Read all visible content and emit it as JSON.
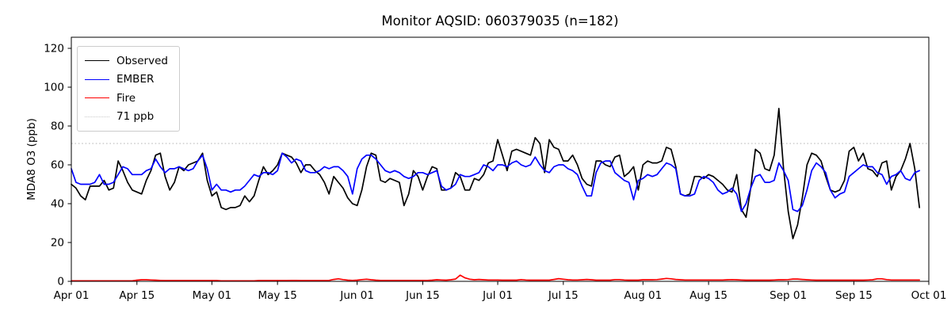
{
  "page": {
    "background": "#ffffff"
  },
  "chart_data": {
    "type": "line",
    "title": "Monitor AQSID: 060379035 (n=182)",
    "xlabel": "",
    "ylabel": "MDA8 O3 (ppb)",
    "n_points": 182,
    "x_start_date": "Apr 01",
    "x_end_date": "Sep 29",
    "x_domain_days": 183,
    "ylim": [
      0,
      126
    ],
    "yticks": [
      0,
      20,
      40,
      60,
      80,
      100,
      120
    ],
    "grid": false,
    "legend_position": "upper-left",
    "xticks": [
      {
        "day": 0,
        "label": "Apr 01"
      },
      {
        "day": 14,
        "label": "Apr 15"
      },
      {
        "day": 30,
        "label": "May 01"
      },
      {
        "day": 44,
        "label": "May 15"
      },
      {
        "day": 61,
        "label": "Jun 01"
      },
      {
        "day": 75,
        "label": "Jun 15"
      },
      {
        "day": 91,
        "label": "Jul 01"
      },
      {
        "day": 105,
        "label": "Jul 15"
      },
      {
        "day": 122,
        "label": "Aug 01"
      },
      {
        "day": 136,
        "label": "Aug 15"
      },
      {
        "day": 153,
        "label": "Sep 01"
      },
      {
        "day": 167,
        "label": "Sep 15"
      },
      {
        "day": 183,
        "label": "Oct 01"
      }
    ],
    "threshold": {
      "value": 71,
      "label": "71 ppb",
      "color": "#c9c9c9",
      "style": "dotted"
    },
    "series": [
      {
        "name": "Observed",
        "color": "#000000",
        "style": "solid",
        "values": [
          50,
          48,
          44,
          42,
          49,
          49,
          49,
          52,
          47,
          48,
          62,
          57,
          51,
          47,
          46,
          45,
          52,
          57,
          65,
          66,
          54,
          47,
          51,
          59,
          57,
          60,
          61,
          62,
          66,
          52,
          44,
          46,
          38,
          37,
          38,
          38,
          39,
          44,
          41,
          44,
          52,
          59,
          55,
          57,
          60,
          66,
          65,
          64,
          61,
          56,
          60,
          60,
          57,
          55,
          51,
          45,
          54,
          51,
          48,
          43,
          40,
          39,
          47,
          59,
          66,
          65,
          52,
          51,
          53,
          52,
          51,
          39,
          45,
          57,
          54,
          47,
          54,
          59,
          58,
          47,
          47,
          48,
          56,
          54,
          47,
          47,
          53,
          52,
          55,
          61,
          62,
          73,
          65,
          57,
          67,
          68,
          67,
          66,
          65,
          74,
          71,
          56,
          73,
          69,
          68,
          62,
          62,
          65,
          60,
          53,
          50,
          49,
          62,
          62,
          60,
          59,
          64,
          65,
          54,
          56,
          59,
          47,
          60,
          62,
          61,
          61,
          62,
          69,
          68,
          59,
          45,
          44,
          45,
          54,
          54,
          53,
          55,
          54,
          52,
          50,
          47,
          46,
          55,
          37,
          33,
          48,
          68,
          66,
          58,
          57,
          65,
          89,
          58,
          36,
          22,
          29,
          43,
          60,
          66,
          65,
          62,
          54,
          47,
          46,
          47,
          52,
          67,
          69,
          62,
          66,
          58,
          57,
          54,
          61,
          62,
          47,
          54,
          57,
          63,
          71,
          58,
          38
        ]
      },
      {
        "name": "EMBER",
        "color": "#0000ff",
        "style": "solid",
        "values": [
          58,
          51,
          50,
          50,
          50,
          51,
          55,
          50,
          50,
          51,
          55,
          59,
          58,
          55,
          55,
          55,
          57,
          58,
          63,
          59,
          56,
          58,
          58,
          59,
          58,
          57,
          58,
          62,
          65,
          58,
          47,
          50,
          47,
          47,
          46,
          47,
          47,
          49,
          52,
          55,
          54,
          56,
          56,
          55,
          57,
          66,
          64,
          61,
          63,
          62,
          57,
          56,
          56,
          57,
          59,
          58,
          59,
          59,
          57,
          54,
          45,
          58,
          63,
          65,
          65,
          63,
          60,
          57,
          56,
          57,
          56,
          54,
          53,
          54,
          56,
          56,
          55,
          56,
          57,
          49,
          47,
          48,
          50,
          55,
          54,
          54,
          55,
          56,
          60,
          59,
          57,
          60,
          60,
          59,
          61,
          62,
          60,
          59,
          60,
          64,
          60,
          57,
          56,
          59,
          60,
          60,
          58,
          57,
          55,
          49,
          44,
          44,
          56,
          61,
          62,
          62,
          56,
          54,
          52,
          51,
          42,
          52,
          53,
          55,
          54,
          55,
          58,
          61,
          60,
          58,
          45,
          44,
          44,
          45,
          52,
          54,
          53,
          51,
          47,
          45,
          46,
          48,
          45,
          36,
          40,
          48,
          54,
          55,
          51,
          51,
          52,
          61,
          57,
          52,
          37,
          36,
          39,
          47,
          57,
          61,
          59,
          56,
          47,
          43,
          45,
          46,
          54,
          56,
          58,
          60,
          59,
          59,
          56,
          55,
          50,
          54,
          55,
          57,
          53,
          52,
          56,
          57
        ]
      },
      {
        "name": "Fire",
        "color": "#ff0000",
        "style": "solid",
        "values": [
          0.3,
          0.3,
          0.3,
          0.3,
          0.3,
          0.3,
          0.3,
          0.3,
          0.3,
          0.3,
          0.3,
          0.3,
          0.3,
          0.3,
          0.6,
          0.8,
          0.8,
          0.7,
          0.6,
          0.5,
          0.4,
          0.4,
          0.4,
          0.4,
          0.4,
          0.4,
          0.4,
          0.4,
          0.4,
          0.4,
          0.4,
          0.4,
          0.3,
          0.3,
          0.3,
          0.3,
          0.3,
          0.3,
          0.3,
          0.3,
          0.4,
          0.4,
          0.4,
          0.4,
          0.4,
          0.4,
          0.4,
          0.5,
          0.5,
          0.4,
          0.4,
          0.4,
          0.4,
          0.4,
          0.4,
          0.5,
          1.0,
          1.3,
          0.9,
          0.6,
          0.5,
          0.6,
          0.9,
          1.1,
          0.8,
          0.6,
          0.5,
          0.5,
          0.5,
          0.5,
          0.5,
          0.5,
          0.5,
          0.5,
          0.5,
          0.5,
          0.5,
          0.6,
          0.8,
          0.7,
          0.6,
          0.8,
          1.2,
          3.2,
          1.8,
          1.1,
          0.8,
          1.0,
          0.8,
          0.7,
          0.7,
          0.7,
          0.6,
          0.6,
          0.6,
          0.6,
          0.9,
          0.7,
          0.6,
          0.6,
          0.6,
          0.6,
          0.6,
          1.0,
          1.4,
          1.1,
          0.8,
          0.7,
          0.7,
          0.8,
          1.0,
          0.8,
          0.6,
          0.6,
          0.6,
          0.6,
          0.9,
          0.9,
          0.7,
          0.6,
          0.6,
          0.6,
          0.8,
          0.8,
          0.8,
          0.9,
          1.2,
          1.5,
          1.3,
          1.0,
          0.8,
          0.7,
          0.7,
          0.7,
          0.7,
          0.7,
          0.7,
          0.7,
          0.7,
          0.7,
          0.8,
          0.9,
          0.8,
          0.7,
          0.6,
          0.6,
          0.6,
          0.6,
          0.6,
          0.6,
          0.7,
          0.8,
          0.8,
          0.9,
          1.2,
          1.2,
          1.0,
          0.8,
          0.7,
          0.6,
          0.6,
          0.6,
          0.6,
          0.6,
          0.6,
          0.6,
          0.6,
          0.6,
          0.6,
          0.6,
          0.7,
          0.8,
          1.3,
          1.3,
          0.9,
          0.7,
          0.7,
          0.7,
          0.7,
          0.7,
          0.7,
          0.7
        ]
      }
    ]
  }
}
